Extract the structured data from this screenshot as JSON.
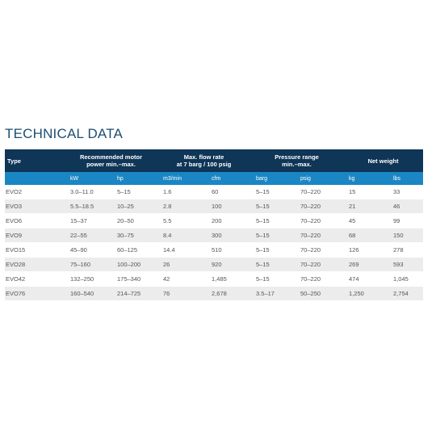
{
  "header": {
    "title": "TECHNICAL DATA"
  },
  "table": {
    "type_header": "Type",
    "groups": [
      [
        "Recommended motor",
        "power min.–max."
      ],
      [
        "Max. flow rate",
        "at 7 barg / 100 psig"
      ],
      [
        "Pressure range",
        "min.–max."
      ],
      [
        "Net weight"
      ]
    ],
    "units": [
      "kW",
      "hp",
      "m3/min",
      "cfm",
      "barg",
      "psig",
      "kg",
      "lbs"
    ],
    "rows": [
      [
        "EVO2",
        "3.0–11.0",
        "5–15",
        "1.6",
        "60",
        "5–15",
        "70–220",
        "15",
        "33"
      ],
      [
        "EVO3",
        "5.5–18.5",
        "10–25",
        "2.8",
        "100",
        "5–15",
        "70–220",
        "21",
        "46"
      ],
      [
        "EVO6",
        "15–37",
        "20–50",
        "5.5",
        "200",
        "5–15",
        "70–220",
        "45",
        "99"
      ],
      [
        "EVO9",
        "22–55",
        "30–75",
        "8.4",
        "300",
        "5–15",
        "70–220",
        "68",
        "150"
      ],
      [
        "EVO15",
        "45–90",
        "60–125",
        "14.4",
        "510",
        "5–15",
        "70–220",
        "126",
        "278"
      ],
      [
        "EVO28",
        "75–160",
        "100–200",
        "26",
        "920",
        "5–15",
        "70–220",
        "269",
        "593"
      ],
      [
        "EVO42",
        "132–250",
        "175–340",
        "42",
        "1,485",
        "5–15",
        "70–220",
        "474",
        "1,045"
      ],
      [
        "EVO76",
        "160–540",
        "214–725",
        "76",
        "2,678",
        "3.5–17",
        "50–250",
        "1,250",
        "2,754"
      ]
    ]
  }
}
